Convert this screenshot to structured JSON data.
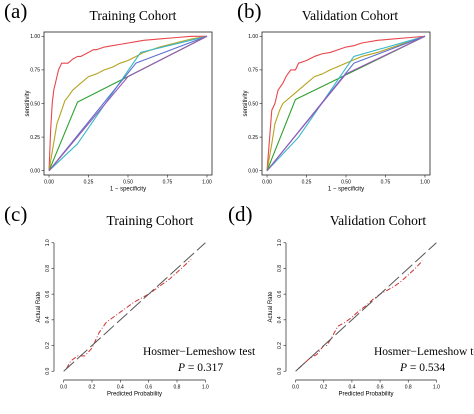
{
  "chart_data": [
    {
      "panel": "(a)",
      "type": "line",
      "title": "Training Cohort",
      "xlabel": "1 − specificity",
      "ylabel": "sensitivity",
      "xlim": [
        0,
        1
      ],
      "ylim": [
        0,
        1
      ],
      "xticks": [
        "0.00",
        "0.25",
        "0.50",
        "0.75",
        "1.00"
      ],
      "yticks": [
        "0.00",
        "0.25",
        "0.50",
        "0.75",
        "1.00"
      ],
      "series": [
        {
          "color": "#e8474c",
          "x": [
            0,
            0.01,
            0.02,
            0.03,
            0.04,
            0.05,
            0.06,
            0.08,
            0.1,
            0.12,
            0.15,
            0.18,
            0.2,
            0.25,
            0.28,
            0.3,
            0.35,
            0.4,
            0.45,
            0.5,
            0.55,
            0.6,
            0.7,
            0.8,
            0.9,
            1
          ],
          "y": [
            0,
            0.3,
            0.5,
            0.6,
            0.65,
            0.7,
            0.75,
            0.8,
            0.8,
            0.8,
            0.83,
            0.85,
            0.85,
            0.88,
            0.9,
            0.9,
            0.92,
            0.93,
            0.94,
            0.95,
            0.96,
            0.97,
            0.98,
            0.99,
            1.0,
            1.0
          ]
        },
        {
          "color": "#b5a31f",
          "x": [
            0,
            0.05,
            0.08,
            0.1,
            0.12,
            0.15,
            0.2,
            0.25,
            0.3,
            0.35,
            0.4,
            0.45,
            0.5,
            0.55,
            0.6,
            0.65,
            0.7,
            0.8,
            0.9,
            1
          ],
          "y": [
            0,
            0.35,
            0.45,
            0.52,
            0.55,
            0.6,
            0.65,
            0.7,
            0.72,
            0.75,
            0.77,
            0.8,
            0.82,
            0.85,
            0.88,
            0.9,
            0.92,
            0.95,
            0.98,
            1.0
          ]
        },
        {
          "color": "#2ea12e",
          "x": [
            0,
            0.18,
            1
          ],
          "y": [
            0,
            0.51,
            1
          ]
        },
        {
          "color": "#39b8c8",
          "x": [
            0,
            0.18,
            0.58,
            1
          ],
          "y": [
            0,
            0.2,
            0.88,
            1
          ]
        },
        {
          "color": "#5a6fd0",
          "x": [
            0,
            0.55,
            1
          ],
          "y": [
            0,
            0.8,
            1
          ]
        },
        {
          "color": "#9b59b6",
          "x": [
            0,
            0.5,
            1
          ],
          "y": [
            0,
            0.7,
            1
          ]
        }
      ]
    },
    {
      "panel": "(b)",
      "type": "line",
      "title": "Validation Cohort",
      "xlabel": "1 − specificity",
      "ylabel": "sensitivity",
      "xlim": [
        0,
        1
      ],
      "ylim": [
        0,
        1
      ],
      "xticks": [
        "0.00",
        "0.25",
        "0.50",
        "0.75",
        "1.00"
      ],
      "yticks": [
        "0.00",
        "0.25",
        "0.50",
        "0.75",
        "1.00"
      ],
      "series": [
        {
          "color": "#e8474c",
          "x": [
            0,
            0.02,
            0.03,
            0.05,
            0.07,
            0.1,
            0.12,
            0.15,
            0.18,
            0.2,
            0.25,
            0.3,
            0.35,
            0.4,
            0.45,
            0.5,
            0.55,
            0.6,
            0.7,
            0.8,
            0.9,
            1
          ],
          "y": [
            0,
            0.3,
            0.45,
            0.5,
            0.6,
            0.65,
            0.7,
            0.75,
            0.75,
            0.8,
            0.82,
            0.85,
            0.87,
            0.88,
            0.9,
            0.92,
            0.93,
            0.95,
            0.97,
            0.98,
            0.99,
            1.0
          ]
        },
        {
          "color": "#b5a31f",
          "x": [
            0,
            0.03,
            0.05,
            0.08,
            0.1,
            0.15,
            0.2,
            0.25,
            0.3,
            0.35,
            0.4,
            0.5,
            0.6,
            0.7,
            0.8,
            0.9,
            1
          ],
          "y": [
            0,
            0.2,
            0.35,
            0.45,
            0.5,
            0.55,
            0.6,
            0.65,
            0.7,
            0.72,
            0.75,
            0.8,
            0.85,
            0.88,
            0.92,
            0.96,
            1.0
          ]
        },
        {
          "color": "#2ea12e",
          "x": [
            0,
            0.18,
            1
          ],
          "y": [
            0,
            0.53,
            1
          ]
        },
        {
          "color": "#39b8c8",
          "x": [
            0,
            0.2,
            0.55,
            1
          ],
          "y": [
            0,
            0.25,
            0.85,
            1
          ]
        },
        {
          "color": "#5a6fd0",
          "x": [
            0,
            0.55,
            1
          ],
          "y": [
            0,
            0.8,
            1
          ]
        },
        {
          "color": "#9b59b6",
          "x": [
            0,
            0.5,
            1
          ],
          "y": [
            0,
            0.72,
            1
          ]
        }
      ]
    },
    {
      "panel": "(c)",
      "type": "line",
      "title": "Training Cohort",
      "xlabel": "Predicted Probability",
      "ylabel": "Actual Rate",
      "xlim": [
        0,
        1
      ],
      "ylim": [
        0,
        1
      ],
      "xticks": [
        "0.0",
        "0.2",
        "0.4",
        "0.6",
        "0.8",
        "1.0"
      ],
      "yticks": [
        "0.0",
        "0.2",
        "0.4",
        "0.6",
        "0.8",
        "1.0"
      ],
      "series": [
        {
          "color": "#d03030",
          "style": "dash-dot",
          "x": [
            0.02,
            0.05,
            0.1,
            0.15,
            0.2,
            0.25,
            0.3,
            0.35,
            0.4,
            0.45,
            0.5,
            0.55,
            0.6,
            0.65,
            0.7,
            0.75,
            0.8,
            0.85,
            0.9
          ],
          "y": [
            0.02,
            0.08,
            0.12,
            0.12,
            0.18,
            0.3,
            0.38,
            0.42,
            0.46,
            0.5,
            0.54,
            0.57,
            0.6,
            0.64,
            0.68,
            0.72,
            0.77,
            0.82,
            0.87
          ]
        },
        {
          "color": "#555555",
          "style": "long-dash",
          "x": [
            0,
            1
          ],
          "y": [
            0,
            1
          ]
        }
      ],
      "annotations": {
        "test": "Hosmer−Lemeshow test",
        "p_symbol": "P",
        "p_value": " = 0.317"
      }
    },
    {
      "panel": "(d)",
      "type": "line",
      "title": "Validation Cohort",
      "xlabel": "Predicted Probability",
      "ylabel": "Actual Rate",
      "xlim": [
        0,
        1
      ],
      "ylim": [
        0,
        1
      ],
      "xticks": [
        "0.0",
        "0.2",
        "0.4",
        "0.6",
        "0.8",
        "1.0"
      ],
      "yticks": [
        "0.0",
        "0.2",
        "0.4",
        "0.6",
        "0.8",
        "1.0"
      ],
      "series": [
        {
          "color": "#d03030",
          "style": "dash-dot",
          "x": [
            0.02,
            0.05,
            0.1,
            0.15,
            0.2,
            0.22,
            0.25,
            0.3,
            0.35,
            0.4,
            0.45,
            0.5,
            0.55,
            0.6,
            0.65,
            0.7,
            0.75,
            0.8,
            0.85,
            0.9
          ],
          "y": [
            0.02,
            0.05,
            0.1,
            0.13,
            0.2,
            0.2,
            0.25,
            0.35,
            0.38,
            0.42,
            0.47,
            0.51,
            0.56,
            0.6,
            0.63,
            0.66,
            0.7,
            0.75,
            0.8,
            0.86
          ]
        },
        {
          "color": "#555555",
          "style": "long-dash",
          "x": [
            0,
            1
          ],
          "y": [
            0,
            1
          ]
        }
      ],
      "annotations": {
        "test": "Hosmer−Lemeshow test",
        "p_symbol": "P",
        "p_value": " = 0.534"
      }
    }
  ]
}
